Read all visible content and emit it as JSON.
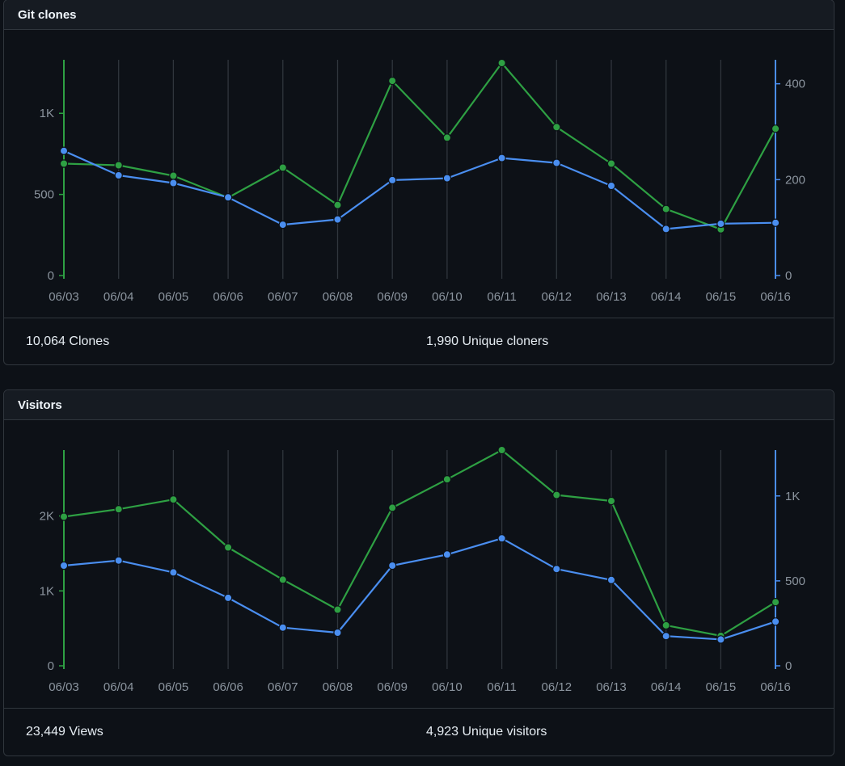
{
  "panels": [
    {
      "title": "Git clones",
      "summary": [
        {
          "count": "10,064",
          "label": "Clones"
        },
        {
          "count": "1,990",
          "label": "Unique cloners"
        }
      ]
    },
    {
      "title": "Visitors",
      "summary": [
        {
          "count": "23,449",
          "label": "Views"
        },
        {
          "count": "4,923",
          "label": "Unique visitors"
        }
      ]
    }
  ],
  "colors": {
    "primary_series": "#2ea043",
    "secondary_series": "#4a8ef0",
    "gridline": "#30363d",
    "tick_text": "#8b949e"
  },
  "chart_data": [
    {
      "type": "line",
      "categories": [
        "06/03",
        "06/04",
        "06/05",
        "06/06",
        "06/07",
        "06/08",
        "06/09",
        "06/10",
        "06/11",
        "06/12",
        "06/13",
        "06/14",
        "06/15",
        "06/16"
      ],
      "series": [
        {
          "axis": "left",
          "color": "#2ea043",
          "values": [
            690,
            680,
            615,
            480,
            665,
            435,
            1200,
            850,
            1310,
            915,
            690,
            410,
            285,
            905
          ]
        },
        {
          "axis": "right",
          "color": "#4a8ef0",
          "values": [
            260,
            209,
            193,
            163,
            106,
            117,
            199,
            203,
            245,
            235,
            187,
            97,
            108,
            110
          ]
        }
      ],
      "left_axis": {
        "ticks": [
          0,
          500,
          1000
        ],
        "tick_labels": [
          "0",
          "500",
          "1K"
        ],
        "range": [
          0,
          1330
        ]
      },
      "right_axis": {
        "ticks": [
          0,
          200,
          400
        ],
        "tick_labels": [
          "0",
          "200",
          "400"
        ],
        "range": [
          0,
          450
        ]
      },
      "grid": "vertical"
    },
    {
      "type": "line",
      "categories": [
        "06/03",
        "06/04",
        "06/05",
        "06/06",
        "06/07",
        "06/08",
        "06/09",
        "06/10",
        "06/11",
        "06/12",
        "06/13",
        "06/14",
        "06/15",
        "06/16"
      ],
      "series": [
        {
          "axis": "left",
          "color": "#2ea043",
          "values": [
            1990,
            2090,
            2220,
            1580,
            1150,
            750,
            2110,
            2490,
            2880,
            2280,
            2200,
            540,
            400,
            850
          ]
        },
        {
          "axis": "right",
          "color": "#4a8ef0",
          "values": [
            590,
            620,
            550,
            400,
            225,
            195,
            590,
            655,
            750,
            570,
            505,
            175,
            155,
            260
          ]
        }
      ],
      "left_axis": {
        "ticks": [
          0,
          1000,
          2000
        ],
        "tick_labels": [
          "0",
          "1K",
          "2K"
        ],
        "range": [
          0,
          2880
        ]
      },
      "right_axis": {
        "ticks": [
          0,
          500,
          1000
        ],
        "tick_labels": [
          "0",
          "500",
          "1K"
        ],
        "range": [
          0,
          1270
        ]
      },
      "grid": "vertical"
    }
  ]
}
